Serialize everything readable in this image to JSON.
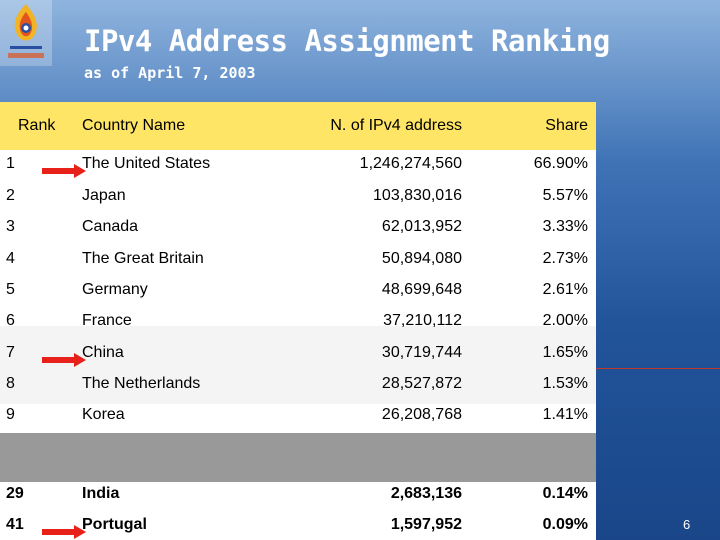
{
  "slide": {
    "title": "IPv4 Address Assignment Ranking",
    "subtitle": "as of April 7, 2003",
    "page_number": "6"
  },
  "table": {
    "headers": {
      "rank": "Rank",
      "country": "Country Name",
      "count": "N. of IPv4 address",
      "share": "Share"
    },
    "rows": [
      {
        "rank": "1",
        "country": "The United States",
        "count": "1,246,274,560",
        "share": "66.90%"
      },
      {
        "rank": "2",
        "country": "Japan",
        "count": "103,830,016",
        "share": "5.57%"
      },
      {
        "rank": "3",
        "country": "Canada",
        "count": "62,013,952",
        "share": "3.33%"
      },
      {
        "rank": "4",
        "country": "The Great Britain",
        "count": "50,894,080",
        "share": "2.73%"
      },
      {
        "rank": "5",
        "country": "Germany",
        "count": "48,699,648",
        "share": "2.61%"
      },
      {
        "rank": "6",
        "country": "France",
        "count": "37,210,112",
        "share": "2.00%"
      },
      {
        "rank": "7",
        "country": "China",
        "count": "30,719,744",
        "share": "1.65%"
      },
      {
        "rank": "8",
        "country": "The Netherlands",
        "count": "28,527,872",
        "share": "1.53%"
      },
      {
        "rank": "9",
        "country": "Korea",
        "count": "26,208,768",
        "share": "1.41%"
      }
    ],
    "highlighted_rows": [
      {
        "rank": "29",
        "country": "India",
        "count": "2,683,136",
        "share": "0.14%"
      },
      {
        "rank": "41",
        "country": "Portugal",
        "count": "1,597,952",
        "share": "0.09%"
      }
    ]
  },
  "colors": {
    "header_bg": "#ffe566",
    "arrow": "#e8201a",
    "gap_bar": "#999999"
  }
}
